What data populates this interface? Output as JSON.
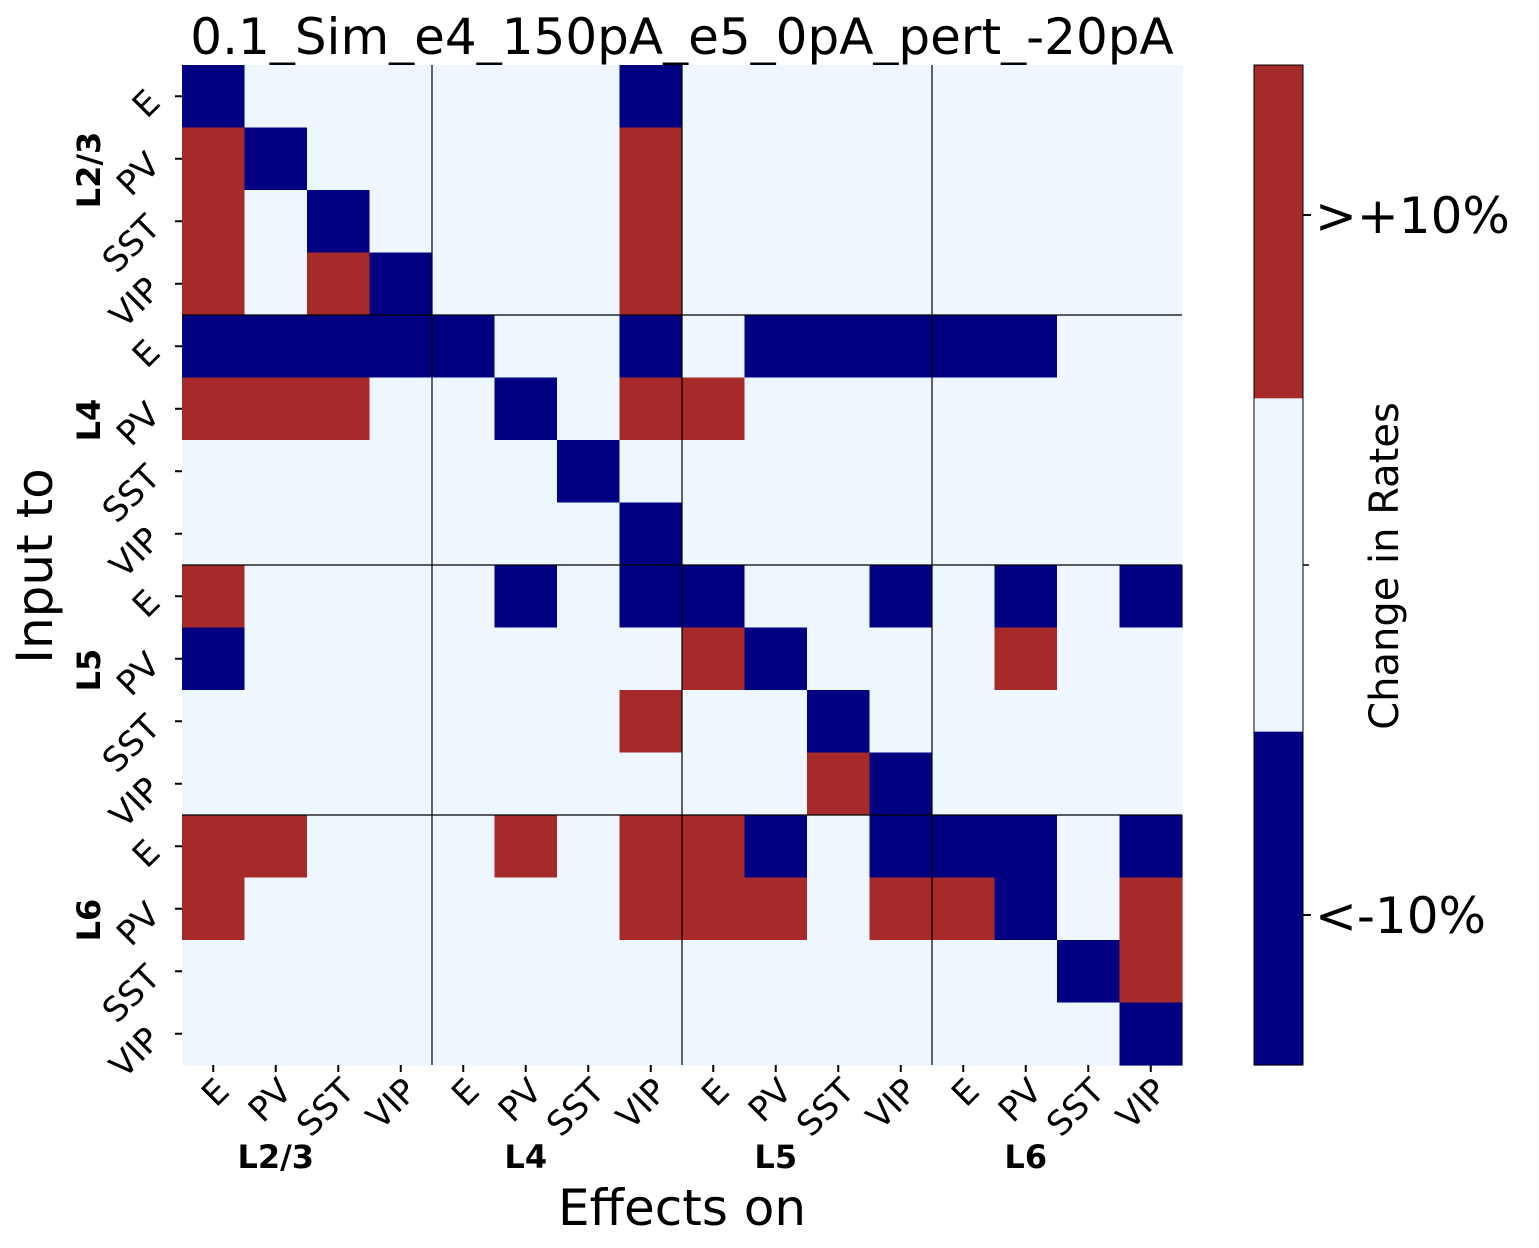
{
  "chart_data": {
    "type": "heatmap",
    "title": "0.1_Sim_e4_150pA_e5_0pA_pert_-20pA",
    "xlabel": "Effects on",
    "ylabel": "Input to",
    "cell_types": [
      "E",
      "PV",
      "SST",
      "VIP"
    ],
    "layers": [
      "L2/3",
      "L4",
      "L5",
      "L6"
    ],
    "colorbar": {
      "label": "Change in Rates",
      "ticks": [
        "<-10%",
        ">+10%"
      ],
      "levels": [
        -1,
        0,
        1
      ],
      "colors": {
        "-1": "#000080",
        "0": "#eef6fe",
        "1": "#a62a2a"
      }
    },
    "matrix": [
      [
        -1,
        0,
        0,
        0,
        0,
        0,
        0,
        -1,
        0,
        0,
        0,
        0,
        0,
        0,
        0,
        0
      ],
      [
        1,
        -1,
        0,
        0,
        0,
        0,
        0,
        1,
        0,
        0,
        0,
        0,
        0,
        0,
        0,
        0
      ],
      [
        1,
        0,
        -1,
        0,
        0,
        0,
        0,
        1,
        0,
        0,
        0,
        0,
        0,
        0,
        0,
        0
      ],
      [
        1,
        0,
        1,
        -1,
        0,
        0,
        0,
        1,
        0,
        0,
        0,
        0,
        0,
        0,
        0,
        0
      ],
      [
        -1,
        -1,
        -1,
        -1,
        -1,
        0,
        0,
        -1,
        0,
        -1,
        -1,
        -1,
        -1,
        -1,
        0,
        0
      ],
      [
        1,
        1,
        1,
        0,
        0,
        -1,
        0,
        1,
        1,
        0,
        0,
        0,
        0,
        0,
        0,
        0
      ],
      [
        0,
        0,
        0,
        0,
        0,
        0,
        -1,
        0,
        0,
        0,
        0,
        0,
        0,
        0,
        0,
        0
      ],
      [
        0,
        0,
        0,
        0,
        0,
        0,
        0,
        -1,
        0,
        0,
        0,
        0,
        0,
        0,
        0,
        0
      ],
      [
        1,
        0,
        0,
        0,
        0,
        -1,
        0,
        -1,
        -1,
        0,
        0,
        -1,
        0,
        -1,
        0,
        -1
      ],
      [
        -1,
        0,
        0,
        0,
        0,
        0,
        0,
        0,
        1,
        -1,
        0,
        0,
        0,
        1,
        0,
        0
      ],
      [
        0,
        0,
        0,
        0,
        0,
        0,
        0,
        1,
        0,
        0,
        -1,
        0,
        0,
        0,
        0,
        0
      ],
      [
        0,
        0,
        0,
        0,
        0,
        0,
        0,
        0,
        0,
        0,
        1,
        -1,
        0,
        0,
        0,
        0
      ],
      [
        1,
        1,
        0,
        0,
        0,
        1,
        0,
        1,
        1,
        -1,
        0,
        -1,
        -1,
        -1,
        0,
        -1
      ],
      [
        1,
        0,
        0,
        0,
        0,
        0,
        0,
        1,
        1,
        1,
        0,
        1,
        1,
        -1,
        0,
        1
      ],
      [
        0,
        0,
        0,
        0,
        0,
        0,
        0,
        0,
        0,
        0,
        0,
        0,
        0,
        0,
        -1,
        1
      ],
      [
        0,
        0,
        0,
        0,
        0,
        0,
        0,
        0,
        0,
        0,
        0,
        0,
        0,
        0,
        0,
        -1
      ]
    ]
  }
}
